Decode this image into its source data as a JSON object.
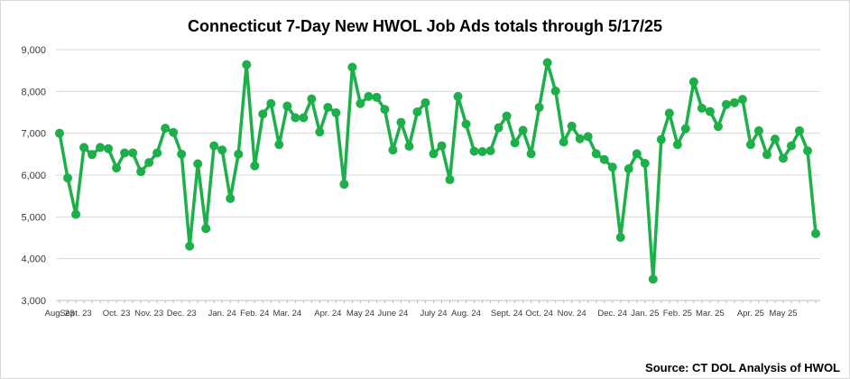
{
  "chart_data": {
    "type": "line",
    "title": "Connecticut 7-Day New HWOL Job Ads totals through 5/17/25",
    "source": "Source: CT DOL Analysis of HWOL",
    "ylim": [
      3000,
      9000
    ],
    "y_ticks": [
      "3,000",
      "4,000",
      "5,000",
      "6,000",
      "7,000",
      "8,000",
      "9,000"
    ],
    "y_tick_values": [
      3000,
      4000,
      5000,
      6000,
      7000,
      8000,
      9000
    ],
    "grid": true,
    "legend": "none",
    "line_color": "#1db04a",
    "x_labels": [
      "Aug. 23",
      "Sept. 23",
      "Oct. 23",
      "Nov. 23",
      "Dec. 23",
      "Jan. 24",
      "Feb. 24",
      "Mar. 24",
      "Apr. 24",
      "May 24",
      "June 24",
      "July 24",
      "Aug. 24",
      "Sept. 24",
      "Oct. 24",
      "Nov. 24",
      "Dec. 24",
      "Jan. 25",
      "Feb. 25",
      "Mar. 25",
      "Apr. 25",
      "May 25"
    ],
    "x_label_index": [
      0,
      2,
      7,
      11,
      15,
      20,
      24,
      28,
      33,
      37,
      41,
      46,
      50,
      55,
      59,
      63,
      68,
      72,
      76,
      80,
      85,
      89
    ],
    "values": [
      7000,
      5930,
      5060,
      6660,
      6490,
      6660,
      6630,
      6170,
      6530,
      6530,
      6080,
      6300,
      6530,
      7120,
      7020,
      6500,
      4300,
      6270,
      4720,
      6700,
      6600,
      5440,
      6500,
      8640,
      6220,
      7460,
      7710,
      6730,
      7650,
      7370,
      7370,
      7820,
      7030,
      7620,
      7490,
      5780,
      8580,
      7710,
      7880,
      7860,
      7570,
      6600,
      7260,
      6690,
      7510,
      7730,
      6510,
      6700,
      5890,
      7880,
      7220,
      6570,
      6560,
      6580,
      7130,
      7410,
      6770,
      7070,
      6510,
      7620,
      8690,
      8010,
      6790,
      7170,
      6870,
      6920,
      6510,
      6370,
      6190,
      4510,
      6150,
      6510,
      6280,
      3510,
      6850,
      7480,
      6730,
      7110,
      8230,
      7600,
      7520,
      7160,
      7690,
      7730,
      7810,
      6730,
      7060,
      6490,
      6860,
      6400,
      6700,
      7060,
      6580,
      4600
    ]
  }
}
